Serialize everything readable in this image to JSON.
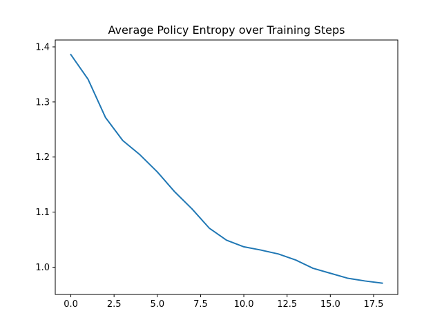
{
  "chart_data": {
    "type": "line",
    "title": "Average Policy Entropy over Training Steps",
    "xlabel": "",
    "ylabel": "",
    "xlim": [
      -0.9,
      18.9
    ],
    "ylim": [
      0.9505,
      1.4125
    ],
    "grid": false,
    "x_ticks": [
      0.0,
      2.5,
      5.0,
      7.5,
      10.0,
      12.5,
      15.0,
      17.5
    ],
    "x_tick_labels": [
      "0.0",
      "2.5",
      "5.0",
      "7.5",
      "10.0",
      "12.5",
      "15.0",
      "17.5"
    ],
    "y_ticks": [
      1.0,
      1.1,
      1.2,
      1.3,
      1.4
    ],
    "y_tick_labels": [
      "1.0",
      "1.1",
      "1.2",
      "1.3",
      "1.4"
    ],
    "series": [
      {
        "color": "#1f77b4",
        "x": [
          0,
          1,
          2,
          3,
          4,
          5,
          6,
          7,
          8,
          9,
          10,
          11,
          12,
          13,
          14,
          15,
          16,
          17,
          18
        ],
        "y": [
          1.386,
          1.341,
          1.272,
          1.23,
          1.204,
          1.173,
          1.137,
          1.106,
          1.071,
          1.049,
          1.037,
          1.031,
          1.024,
          1.013,
          0.998,
          0.989,
          0.98,
          0.975,
          0.971
        ]
      }
    ]
  }
}
